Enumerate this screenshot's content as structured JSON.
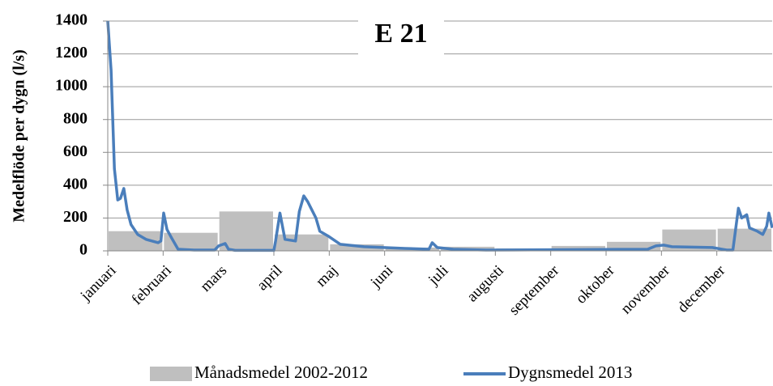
{
  "chart_data": {
    "type": "bar",
    "title": "E 21",
    "y_label": "Medelflöde per dygn (l/s)",
    "categories": [
      "januari",
      "februari",
      "mars",
      "april",
      "maj",
      "juni",
      "juli",
      "augusti",
      "september",
      "oktober",
      "november",
      "december"
    ],
    "series": [
      {
        "name": "Månadsmedel 2002-2012",
        "type": "bar",
        "color": "#bfbfbf",
        "values": [
          120,
          110,
          240,
          100,
          40,
          20,
          25,
          15,
          30,
          55,
          130,
          135
        ]
      },
      {
        "name": "Dygnsmedel 2013",
        "type": "line",
        "color": "#4a7ebb",
        "x": [
          0,
          0.06,
          0.12,
          0.18,
          0.23,
          0.29,
          0.35,
          0.42,
          0.54,
          0.69,
          0.91,
          0.96,
          1.01,
          1.07,
          1.15,
          1.27,
          1.56,
          1.93,
          2.0,
          2.12,
          2.18,
          2.3,
          3.0,
          3.03,
          3.11,
          3.2,
          3.39,
          3.46,
          3.54,
          3.61,
          3.76,
          3.83,
          3.98,
          4.2,
          4.63,
          5.37,
          5.8,
          5.86,
          5.95,
          6.24,
          6.83,
          9.75,
          9.9,
          10.04,
          10.19,
          10.92,
          11.18,
          11.29,
          11.39,
          11.45,
          11.54,
          11.59,
          11.73,
          11.83,
          11.9,
          11.94,
          12.0
        ],
        "values": [
          1400,
          1100,
          500,
          310,
          320,
          380,
          250,
          160,
          100,
          70,
          50,
          60,
          230,
          130,
          80,
          10,
          5,
          5,
          30,
          45,
          10,
          3,
          3,
          60,
          230,
          70,
          60,
          240,
          335,
          300,
          200,
          120,
          90,
          40,
          25,
          15,
          10,
          50,
          20,
          10,
          5,
          10,
          30,
          35,
          25,
          20,
          5,
          5,
          260,
          200,
          220,
          140,
          120,
          100,
          150,
          230,
          140
        ]
      }
    ],
    "xlim": [
      0,
      12
    ],
    "ylim": [
      0,
      1400
    ],
    "yticks": [
      0,
      200,
      400,
      600,
      800,
      1000,
      1200,
      1400
    ],
    "grid": true,
    "legend": "bottom"
  }
}
